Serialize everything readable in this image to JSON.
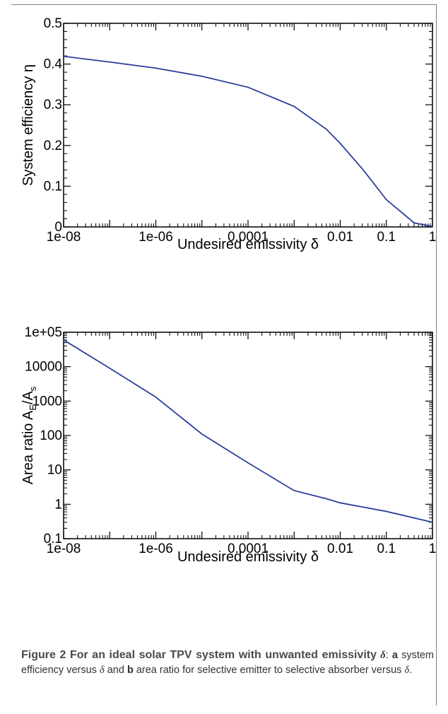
{
  "chart_data": [
    {
      "type": "line",
      "xscale": "log",
      "xlim": [
        "1e-08",
        "1"
      ],
      "ylim": [
        0,
        0.5
      ],
      "xlabel": "Undesired emissivity δ",
      "ylabel": "System efficiency η",
      "xticks": [
        "1e-08",
        "1e-06",
        "0.0001",
        "0.01",
        "0.1",
        "1"
      ],
      "yticks": [
        "0",
        "0.1",
        "0.2",
        "0.3",
        "0.4",
        "0.5"
      ],
      "series": [
        {
          "color": "#2b3f9b",
          "x": [
            1e-08,
            1e-07,
            1e-06,
            1e-05,
            0.0001,
            0.001,
            0.005,
            0.01,
            0.03,
            0.1,
            0.4,
            1
          ],
          "y": [
            0.419,
            0.405,
            0.39,
            0.37,
            0.343,
            0.296,
            0.24,
            0.205,
            0.143,
            0.067,
            0.01,
            0.001
          ]
        }
      ]
    },
    {
      "type": "line",
      "xscale": "log",
      "yscale": "log",
      "xlim": [
        "1e-08",
        "1"
      ],
      "ylim": [
        "0.1",
        "1e+05"
      ],
      "xlabel": "Undesired emissivity δ",
      "ylabel_main": "Area ratio A",
      "ylabel_sub1": "E",
      "ylabel_mid": "/A",
      "ylabel_sub2": "s",
      "xticks": [
        "1e-08",
        "1e-06",
        "0.0001",
        "0.01",
        "0.1",
        "1"
      ],
      "yticks": [
        "0.1",
        "1",
        "10",
        "100",
        "1000",
        "10000",
        "1e+05"
      ],
      "series": [
        {
          "color": "#2b3f9b",
          "x": [
            1e-08,
            1e-07,
            1e-06,
            1e-05,
            0.0001,
            0.001,
            0.005,
            0.01,
            0.1,
            1
          ],
          "y": [
            60000,
            9000,
            1300,
            110,
            16,
            2.5,
            1.45,
            1.1,
            0.62,
            0.3
          ]
        }
      ]
    }
  ],
  "caption": {
    "head": "Figure 2 For an ideal solar TPV system with unwanted emissivity",
    "delta": "δ",
    "colon": ":",
    "a": "a",
    "part_a": " system efficiency versus ",
    "and": " and ",
    "b": "b",
    "part_b": " area ratio for selective emitter to selective absorber versus ",
    "end": "."
  }
}
